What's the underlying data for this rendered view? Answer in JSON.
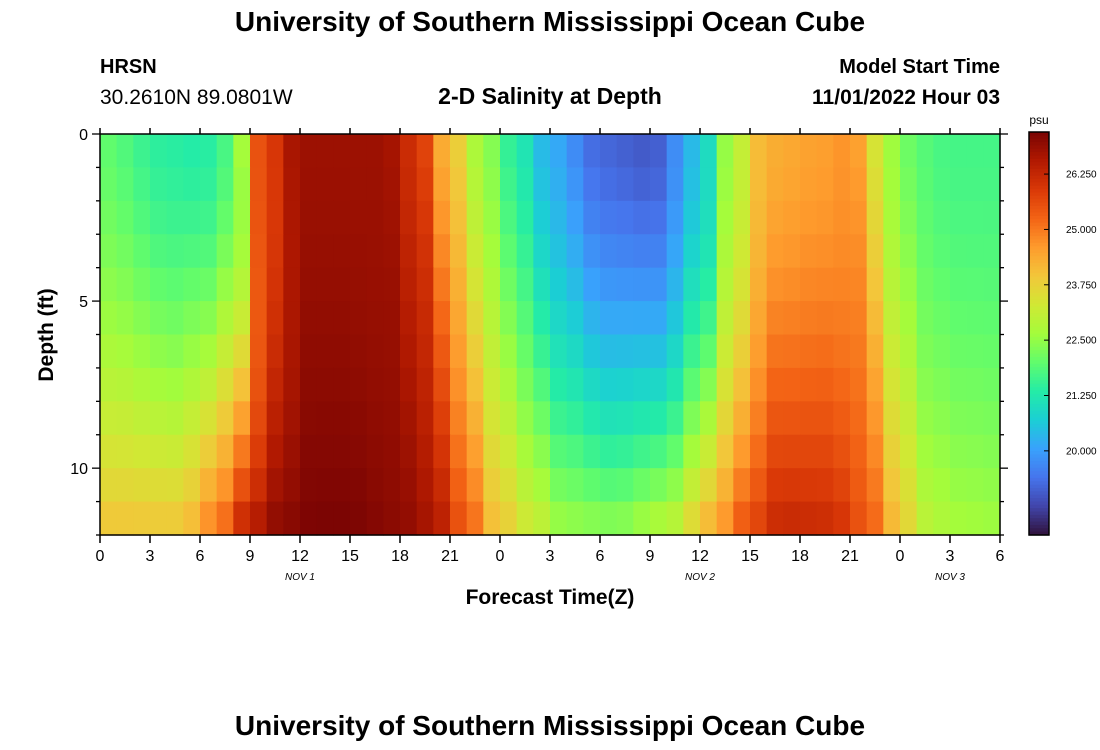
{
  "header": {
    "title": "University of Southern Mississippi Ocean Cube",
    "station": "HRSN",
    "coords": "30.2610N  89.0801W",
    "subtitle": "2-D Salinity at Depth",
    "model_label": "Model Start Time",
    "model_time": "11/01/2022 Hour 03"
  },
  "footer": {
    "title": "University of Southern Mississippi Ocean Cube"
  },
  "chart_data": {
    "type": "heatmap",
    "title": "2-D Salinity at Depth",
    "xlabel": "Forecast Time(Z)",
    "ylabel": "Depth (ft)",
    "x_range_hours": [
      0,
      54
    ],
    "x_tick_labels": [
      "0",
      "3",
      "6",
      "9",
      "12",
      "15",
      "18",
      "21",
      "0",
      "3",
      "6",
      "9",
      "12",
      "15",
      "18",
      "21",
      "0",
      "3",
      "6"
    ],
    "date_labels": [
      {
        "text": "NOV 1",
        "hour": 12
      },
      {
        "text": "NOV 2",
        "hour": 36
      },
      {
        "text": "NOV 3",
        "hour": 51
      }
    ],
    "y_ticks": [
      0,
      5,
      10
    ],
    "y_range": [
      0,
      12
    ],
    "grid": false,
    "colorbar": {
      "unit": "psu",
      "range": [
        18.1,
        27.2
      ],
      "tick_values": [
        20.0,
        21.25,
        22.5,
        23.75,
        25.0,
        26.25
      ],
      "tick_labels": [
        "20.000",
        "21.250",
        "22.500",
        "23.750",
        "25.000",
        "26.250"
      ],
      "colors": [
        "#30123b",
        "#4145ab",
        "#4675ed",
        "#39a2fc",
        "#1bcfd4",
        "#24eca6",
        "#61fc6c",
        "#a4fc3b",
        "#d1e834",
        "#f3c63a",
        "#fe9b2d",
        "#f36315",
        "#d93807",
        "#b11901",
        "#7a0403"
      ]
    },
    "salinity_model": {
      "description": "salinity (psu) at forecast hour and depth (ft)",
      "keyframes_hours": [
        0,
        4,
        6,
        8,
        9.5,
        12,
        14,
        17,
        19,
        21,
        23,
        25,
        27,
        30,
        33,
        36,
        37.5,
        40,
        43,
        45,
        47.5,
        49,
        51,
        54
      ],
      "surface_psu": [
        22.0,
        21.4,
        21.3,
        21.8,
        25.5,
        26.8,
        26.8,
        26.8,
        26.0,
        24.0,
        22.5,
        21.3,
        20.2,
        19.2,
        19.0,
        20.5,
        22.5,
        24.3,
        24.5,
        24.7,
        22.6,
        21.9,
        21.7,
        21.7
      ],
      "bottom_psu": [
        24.0,
        24.0,
        25.0,
        26.5,
        27.0,
        27.2,
        27.2,
        27.0,
        26.7,
        25.5,
        24.0,
        23.3,
        22.6,
        22.5,
        23.0,
        24.4,
        25.5,
        26.3,
        26.2,
        25.5,
        23.7,
        22.9,
        22.7,
        22.6
      ],
      "depth_profile_exponent": 1.6
    }
  }
}
